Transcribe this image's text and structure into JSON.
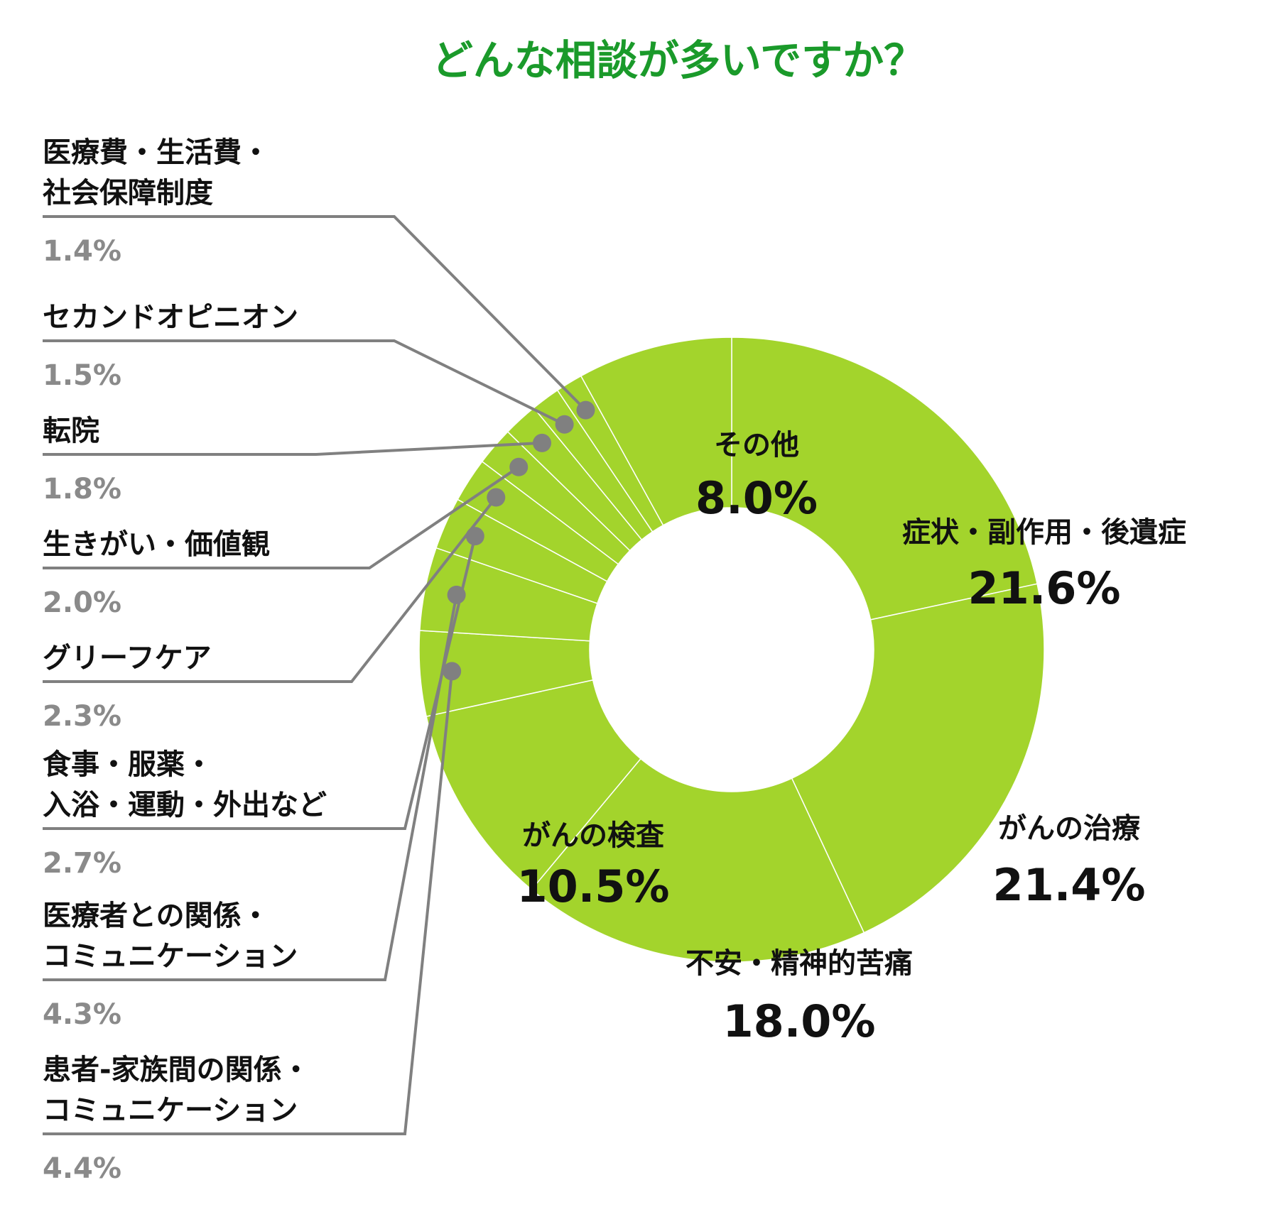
{
  "title": "どんな相談が多いですか？",
  "colors": {
    "title": "#1a9a2a",
    "slice": "#a3d42c",
    "divider": "#ffffff",
    "leader": "#808080",
    "outside_percent": "#8a8a8a",
    "text": "#111111"
  },
  "chart_data": {
    "type": "pie",
    "donut": true,
    "order": "clockwise from top",
    "categories": [
      "症状・副作用・後遺症",
      "がんの治療",
      "不安・精神的苦痛",
      "がんの検査",
      "患者-家族間の関係・コミュニケーション",
      "医療者との関係・コミュニケーション",
      "食事・服薬・入浴・運動・外出など",
      "グリーフケア",
      "生きがい・価値観",
      "転院",
      "セカンドオピニオン",
      "医療費・生活費・社会保障制度",
      "その他"
    ],
    "values": [
      21.6,
      21.4,
      18.0,
      10.5,
      4.4,
      4.3,
      2.7,
      2.3,
      2.0,
      1.8,
      1.5,
      1.4,
      8.0
    ],
    "unit": "%"
  },
  "labels": [
    {
      "lines": [
        "症状・副作用・後遺症"
      ],
      "percent": "21.6%",
      "outside": false
    },
    {
      "lines": [
        "がんの治療"
      ],
      "percent": "21.4%",
      "outside": false
    },
    {
      "lines": [
        "不安・精神的苦痛"
      ],
      "percent": "18.0%",
      "outside": false
    },
    {
      "lines": [
        "がんの検査"
      ],
      "percent": "10.5%",
      "outside": false
    },
    {
      "lines": [
        "患者-家族間の関係・",
        "コミュニケーション"
      ],
      "percent": "4.4%",
      "outside": true
    },
    {
      "lines": [
        "医療者との関係・",
        "コミュニケーション"
      ],
      "percent": "4.3%",
      "outside": true
    },
    {
      "lines": [
        "食事・服薬・",
        "入浴・運動・外出など"
      ],
      "percent": "2.7%",
      "outside": true
    },
    {
      "lines": [
        "グリーフケア"
      ],
      "percent": "2.3%",
      "outside": true
    },
    {
      "lines": [
        "生きがい・価値観"
      ],
      "percent": "2.0%",
      "outside": true
    },
    {
      "lines": [
        "転院"
      ],
      "percent": "1.8%",
      "outside": true
    },
    {
      "lines": [
        "セカンドオピニオン"
      ],
      "percent": "1.5%",
      "outside": true
    },
    {
      "lines": [
        "医療費・生活費・",
        "社会保障制度"
      ],
      "percent": "1.4%",
      "outside": true
    },
    {
      "lines": [
        "その他"
      ],
      "percent": "8.0%",
      "outside": false
    }
  ]
}
